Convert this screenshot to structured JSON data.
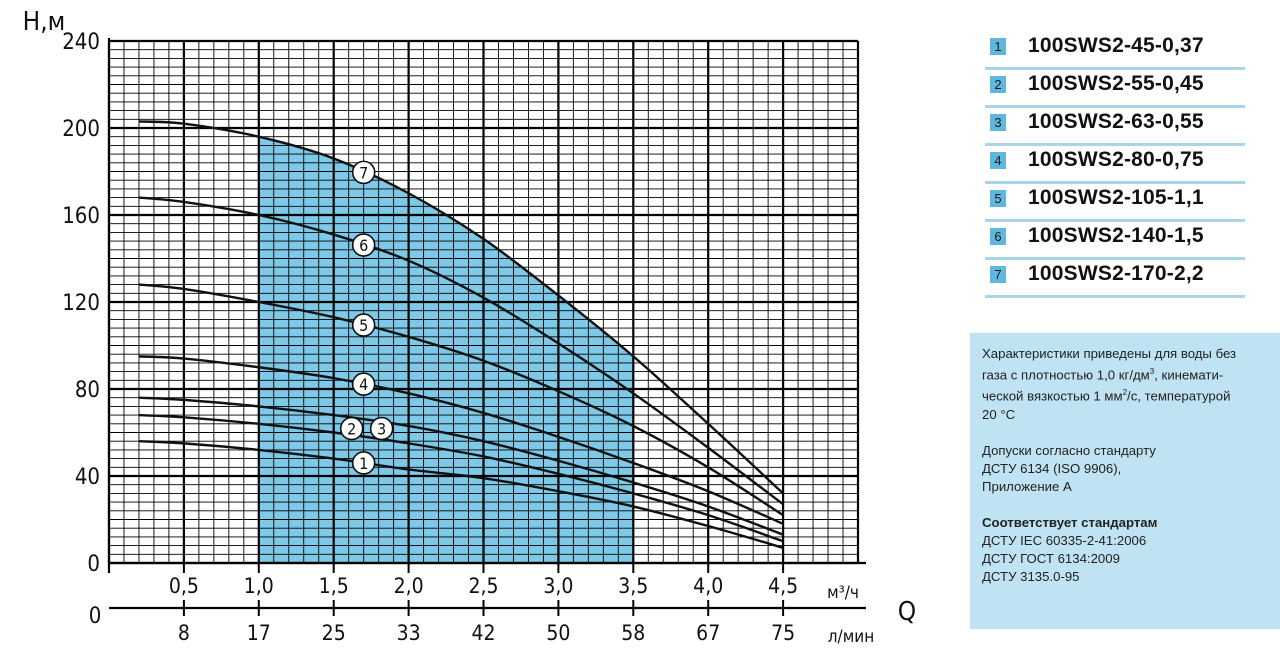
{
  "chart_data": {
    "type": "line",
    "ylabel": "Н,м",
    "ylim": [
      0,
      240
    ],
    "yticks": [
      "0",
      "40",
      "80",
      "120",
      "160",
      "200",
      "240"
    ],
    "xlim": [
      0,
      5
    ],
    "xticks_m3h": [
      "0,5",
      "1,0",
      "1,5",
      "2,0",
      "2,5",
      "3,0",
      "3,5",
      "4,0",
      "4,5"
    ],
    "xunit_m3h": "м³/ч",
    "xticks_lmin": [
      "8",
      "17",
      "25",
      "33",
      "42",
      "50",
      "58",
      "67",
      "75"
    ],
    "xunit_lmin": "л/мин",
    "xzero_lower": "0",
    "xlabel": "Q",
    "working_range": [
      1.0,
      3.5
    ],
    "series": [
      {
        "name": "1",
        "x": [
          0.2,
          0.5,
          1.0,
          1.5,
          2.0,
          2.5,
          3.0,
          3.5,
          4.0,
          4.5
        ],
        "values": [
          56,
          55,
          52,
          48,
          43,
          39,
          33,
          26,
          17,
          7
        ]
      },
      {
        "name": "2",
        "x": [
          0.2,
          0.5,
          1.0,
          1.5,
          2.0,
          2.5,
          3.0,
          3.5,
          4.0,
          4.5
        ],
        "values": [
          68,
          67,
          64,
          60,
          55,
          49,
          41,
          32,
          22,
          10
        ]
      },
      {
        "name": "3",
        "x": [
          0.2,
          0.5,
          1.0,
          1.5,
          2.0,
          2.5,
          3.0,
          3.5,
          4.0,
          4.5
        ],
        "values": [
          76,
          75,
          72,
          68,
          63,
          56,
          47,
          37,
          26,
          13
        ]
      },
      {
        "name": "4",
        "x": [
          0.2,
          0.5,
          1.0,
          1.5,
          2.0,
          2.5,
          3.0,
          3.5,
          4.0,
          4.5
        ],
        "values": [
          95,
          94,
          90,
          85,
          78,
          69,
          58,
          46,
          33,
          18
        ]
      },
      {
        "name": "5",
        "x": [
          0.2,
          0.5,
          1.0,
          1.5,
          2.0,
          2.5,
          3.0,
          3.5,
          4.0,
          4.5
        ],
        "values": [
          128,
          126,
          120,
          113,
          104,
          93,
          79,
          63,
          44,
          22
        ]
      },
      {
        "name": "6",
        "x": [
          0.2,
          0.5,
          1.0,
          1.5,
          2.0,
          2.5,
          3.0,
          3.5,
          4.0,
          4.5
        ],
        "values": [
          168,
          166,
          160,
          151,
          139,
          122,
          101,
          78,
          53,
          27
        ]
      },
      {
        "name": "7",
        "x": [
          0.2,
          0.5,
          1.0,
          1.5,
          2.0,
          2.5,
          3.0,
          3.5,
          4.0,
          4.5
        ],
        "values": [
          203,
          202,
          196,
          186,
          170,
          149,
          123,
          95,
          64,
          32
        ]
      }
    ],
    "grid": true
  },
  "legend": [
    {
      "num": "1",
      "name": "100SWS2-45-0,37"
    },
    {
      "num": "2",
      "name": "100SWS2-55-0,45"
    },
    {
      "num": "3",
      "name": "100SWS2-63-0,55"
    },
    {
      "num": "4",
      "name": "100SWS2-80-0,75"
    },
    {
      "num": "5",
      "name": "100SWS2-105-1,1"
    },
    {
      "num": "6",
      "name": "100SWS2-140-1,5"
    },
    {
      "num": "7",
      "name": "100SWS2-170-2,2"
    }
  ],
  "note": {
    "p1_line1": "Характеристики приведены для воды без",
    "p1_line2_a": "газа с плотностью 1,0 кг/дм",
    "p1_line2_sup": "3",
    "p1_line2_b": ", кинемати-",
    "p1_line3_a": "ческой вязкостью 1 мм",
    "p1_line3_sup": "2",
    "p1_line3_b": "/с, температурой",
    "p1_line4": "20 °С",
    "p2_line1": "Допуски согласно стандарту",
    "p2_line2": "ДСТУ 6134 (ISO 9906),",
    "p2_line3": "Приложение А",
    "p3_title": "Соответствует стандартам",
    "p3_line1": "ДСТУ IEC 60335-2-41:2006",
    "p3_line2": "ДСТУ ГОСТ 6134:2009",
    "p3_line3": "ДСТУ 3135.0-95"
  },
  "colors": {
    "fill": "#7ec8e8",
    "grid": "#000000",
    "curve": "#111111",
    "note_bg": "#bfe3f2",
    "legend_num_bg": "#5fb7dd"
  }
}
